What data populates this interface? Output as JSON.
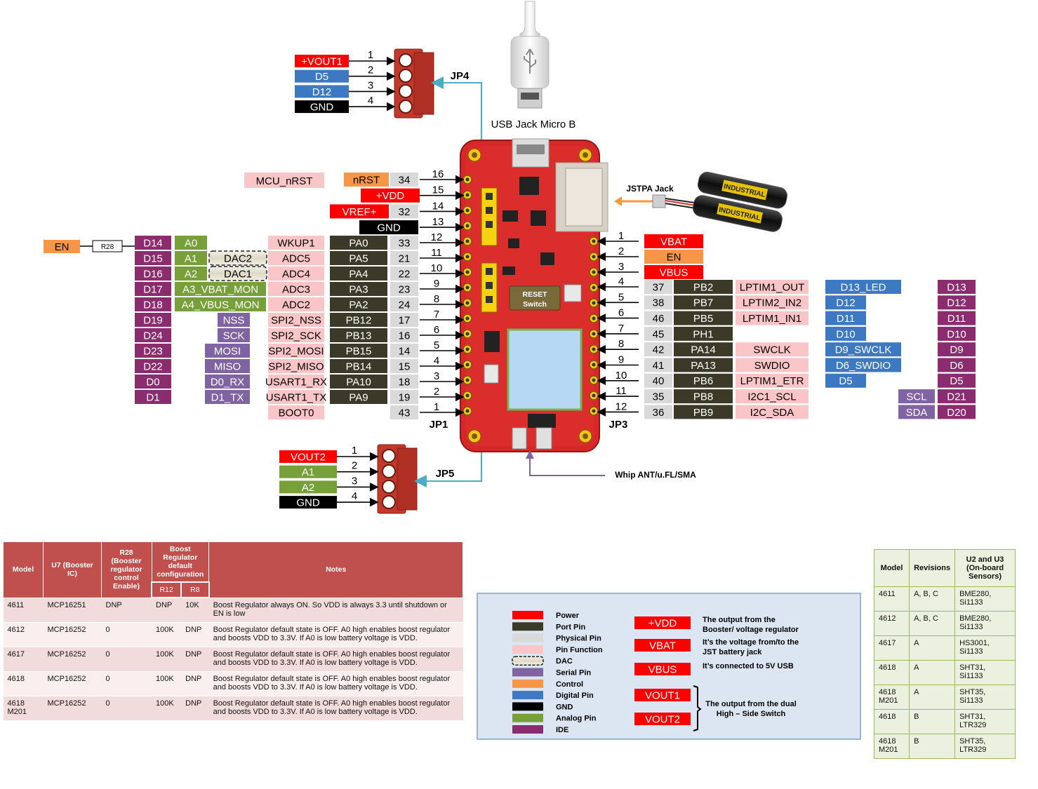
{
  "jp4": {
    "label": "JP4",
    "pins": [
      {
        "num": "1",
        "name": "+VOUT1",
        "color": "#ff0000"
      },
      {
        "num": "2",
        "name": "D5",
        "color": "#3c79c2"
      },
      {
        "num": "3",
        "name": "D12",
        "color": "#3c79c2"
      },
      {
        "num": "4",
        "name": "GND",
        "color": "#000000"
      }
    ]
  },
  "jp5": {
    "label": "JP5",
    "pins": [
      {
        "num": "1",
        "name": "VOUT2",
        "color": "#ff0000"
      },
      {
        "num": "2",
        "name": "A1",
        "color": "#77a03a"
      },
      {
        "num": "3",
        "name": "A2",
        "color": "#77a03a"
      },
      {
        "num": "4",
        "name": "GND",
        "color": "#000000"
      }
    ]
  },
  "usb_label": "USB Jack Micro B",
  "jstpa_label": "JSTPA Jack",
  "antenna_label": "Whip ANT/u.FL/SMA",
  "jp1_label": "JP1",
  "jp3_label": "JP3",
  "board": {
    "reset_label": "RESET",
    "switch_label": "Switch"
  },
  "battery_text": "INDUSTRIAL",
  "en_r28": {
    "en": "EN",
    "r28": "R28"
  },
  "top_left": {
    "mcu_nrst": "MCU_nRST",
    "rows": [
      {
        "num": "16",
        "port": "34",
        "fn": "nRST",
        "fn_color": "#f79646",
        "fn_text": "#000000"
      },
      {
        "num": "15",
        "port": "",
        "fn": "+VDD",
        "fn_color": "#ff0000",
        "fn_text": "#ffffff"
      },
      {
        "num": "14",
        "port": "32",
        "fn": "VREF+",
        "fn_color": "#ff0000",
        "fn_text": "#ffffff"
      },
      {
        "num": "13",
        "port": "",
        "fn": "GND",
        "fn_color": "#000000",
        "fn_text": "#ffffff"
      }
    ]
  },
  "jp1_rows": [
    {
      "num": "12",
      "pkg": "33",
      "port": "PA0",
      "phys": "WKUP1",
      "mid": "A0",
      "mid_type": "analog",
      "ide": "D14"
    },
    {
      "num": "11",
      "pkg": "21",
      "port": "PA5",
      "phys": "ADC5",
      "mid": "A1",
      "mid_type": "analog",
      "dac": "DAC2",
      "ide": "D15"
    },
    {
      "num": "10",
      "pkg": "22",
      "port": "PA4",
      "phys": "ADC4",
      "mid": "A2",
      "mid_type": "analog",
      "dac": "DAC1",
      "ide": "D16"
    },
    {
      "num": "9",
      "pkg": "23",
      "port": "PA3",
      "phys": "ADC3",
      "mid": "A3_VBAT_MON",
      "mid_type": "analog-wide",
      "ide": "D17"
    },
    {
      "num": "8",
      "pkg": "24",
      "port": "PA2",
      "phys": "ADC2",
      "mid": "A4_VBUS_MON",
      "mid_type": "analog-wide",
      "ide": "D18"
    },
    {
      "num": "7",
      "pkg": "17",
      "port": "PB12",
      "phys": "SPI2_NSS",
      "mid": "NSS",
      "mid_type": "serial",
      "ide": "D19"
    },
    {
      "num": "6",
      "pkg": "16",
      "port": "PB13",
      "phys": "SPI2_SCK",
      "mid": "SCK",
      "mid_type": "serial",
      "ide": "D24"
    },
    {
      "num": "5",
      "pkg": "14",
      "port": "PB15",
      "phys": "SPI2_MOSI",
      "mid": "MOSI",
      "mid_type": "serial",
      "ide": "D23"
    },
    {
      "num": "4",
      "pkg": "15",
      "port": "PB14",
      "phys": "SPI2_MISO",
      "mid": "MISO",
      "mid_type": "serial",
      "ide": "D22"
    },
    {
      "num": "3",
      "pkg": "18",
      "port": "PA10",
      "phys": "USART1_RX",
      "mid": "D0_RX",
      "mid_type": "serial",
      "ide": "D0"
    },
    {
      "num": "2",
      "pkg": "19",
      "port": "PA9",
      "phys": "USART1_TX",
      "mid": "D1_TX",
      "mid_type": "serial",
      "ide": "D1"
    },
    {
      "num": "1",
      "pkg": "43",
      "port": "",
      "phys": "BOOT0",
      "mid": "",
      "mid_type": "",
      "ide": ""
    }
  ],
  "jp3_power": [
    {
      "num": "1",
      "name": "VBAT",
      "color": "#ff0000",
      "text": "#ffffff"
    },
    {
      "num": "2",
      "name": "EN",
      "color": "#f79646",
      "text": "#000000"
    },
    {
      "num": "3",
      "name": "VBUS",
      "color": "#ff0000",
      "text": "#ffffff"
    }
  ],
  "jp3_rows": [
    {
      "num": "4",
      "pkg": "37",
      "port": "PB2",
      "phys": "LPTIM1_OUT",
      "digital": "D13_LED",
      "ide": "D13"
    },
    {
      "num": "5",
      "pkg": "38",
      "port": "PB7",
      "phys": "LPTIM2_IN2",
      "digital": "D12",
      "ide": "D12"
    },
    {
      "num": "6",
      "pkg": "46",
      "port": "PB5",
      "phys": "LPTIM1_IN1",
      "digital": "D11",
      "ide": "D11"
    },
    {
      "num": "7",
      "pkg": "45",
      "port": "PH1",
      "phys": "",
      "digital": "D10",
      "ide": "D10"
    },
    {
      "num": "8",
      "pkg": "42",
      "port": "PA14",
      "phys": "SWCLK",
      "digital": "D9_SWCLK",
      "ide": "D9"
    },
    {
      "num": "9",
      "pkg": "41",
      "port": "PA13",
      "phys": "SWDIO",
      "digital": "D6_SWDIO",
      "ide": "D6"
    },
    {
      "num": "10",
      "pkg": "40",
      "port": "PB6",
      "phys": "LPTIM1_ETR",
      "digital": "D5",
      "ide": "D5"
    },
    {
      "num": "11",
      "pkg": "35",
      "port": "PB8",
      "phys": "I2C1_SCL",
      "digital": "",
      "serial": "SCL",
      "ide": "D21"
    },
    {
      "num": "12",
      "pkg": "36",
      "port": "PB9",
      "phys": "I2C_SDA",
      "digital": "",
      "serial": "SDA",
      "ide": "D20"
    }
  ],
  "legend": {
    "items": [
      {
        "label": "Power",
        "color": "#ff0000"
      },
      {
        "label": "Port Pin",
        "color": "#3b3a28"
      },
      {
        "label": "Physical Pin",
        "color": "#d9d9d9"
      },
      {
        "label": "Pin Function",
        "color": "#f9c5c6"
      },
      {
        "label": "DAC",
        "color": "#ddd9c4"
      },
      {
        "label": "Serial Pin",
        "color": "#8064a2"
      },
      {
        "label": "Control",
        "color": "#f79646"
      },
      {
        "label": "Digital Pin",
        "color": "#3c79c2"
      },
      {
        "label": "GND",
        "color": "#000000"
      },
      {
        "label": "Analog Pin",
        "color": "#77a03a"
      },
      {
        "label": "IDE",
        "color": "#8b2c6e"
      }
    ],
    "notes": [
      {
        "badge": "+VDD",
        "lines": [
          "The output from the",
          "Booster/ voltage regulator"
        ]
      },
      {
        "badge": "VBAT",
        "lines": [
          "It’s the voltage from/to the",
          "JST battery jack"
        ]
      },
      {
        "badge": "VBUS",
        "lines": [
          "It’s connected to 5V USB"
        ]
      }
    ],
    "vout_badges": [
      "VOUT1",
      "VOUT2"
    ],
    "vout_note": [
      "The output from the dual",
      "High – Side Switch"
    ]
  },
  "model_table": {
    "headers": {
      "model": "Model",
      "u7": "U7 (Booster IC)",
      "r28": "R28 (Booster regulator control Enable)",
      "boost": "Boost Regulator default configuration",
      "r12": "R12",
      "r8": "R8",
      "notes": "Notes"
    },
    "rows": [
      {
        "model": "4611",
        "u7": "MCP16251",
        "r28": "DNP",
        "r12": "DNP",
        "r8": "10K",
        "notes": "Boost Regulator always ON. So VDD is always 3.3 until shutdown or EN is low"
      },
      {
        "model": "4612",
        "u7": "MCP16252",
        "r28": "0",
        "r12": "100K",
        "r8": "DNP",
        "notes": "Boost Regulator default state is OFF. A0 high enables boost regulator and boosts VDD to 3.3V. If A0 is low battery voltage is VDD."
      },
      {
        "model": "4617",
        "u7": "MCP16252",
        "r28": "0",
        "r12": "100K",
        "r8": "DNP",
        "notes": "Boost Regulator default state is OFF. A0 high enables boost regulator and boosts VDD to 3.3V. If A0 is low battery voltage is VDD."
      },
      {
        "model": "4618",
        "u7": "MCP16252",
        "r28": "0",
        "r12": "100K",
        "r8": "DNP",
        "notes": "Boost Regulator default state is OFF. A0 high enables boost regulator and boosts VDD to 3.3V. If A0 is low battery voltage is VDD."
      },
      {
        "model": "4618 M201",
        "u7": "MCP16252",
        "r28": "0",
        "r12": "100K",
        "r8": "DNP",
        "notes": "Boost Regulator default state is OFF. A0 high enables boost regulator and boosts VDD to 3.3V. If A0 is low battery voltage is VDD."
      }
    ]
  },
  "rev_table": {
    "headers": {
      "model": "Model",
      "rev": "Revisions",
      "sensors": "U2 and U3 (On-board Sensors)"
    },
    "rows": [
      {
        "model": "4611",
        "rev": "A, B, C",
        "sensors": "BME280, Si1133"
      },
      {
        "model": "4612",
        "rev": "A, B, C",
        "sensors": "BME280, Si1133"
      },
      {
        "model": "4617",
        "rev": "A",
        "sensors": "HS3001, Si1133"
      },
      {
        "model": "4618",
        "rev": "A",
        "sensors": "SHT31, Si1133"
      },
      {
        "model": "4618 M201",
        "rev": "A",
        "sensors": "SHT35, Si1133"
      },
      {
        "model": "4618",
        "rev": "B",
        "sensors": "SHT31, LTR329"
      },
      {
        "model": "4618 M201",
        "rev": "B",
        "sensors": "SHT35, LTR329"
      }
    ]
  }
}
